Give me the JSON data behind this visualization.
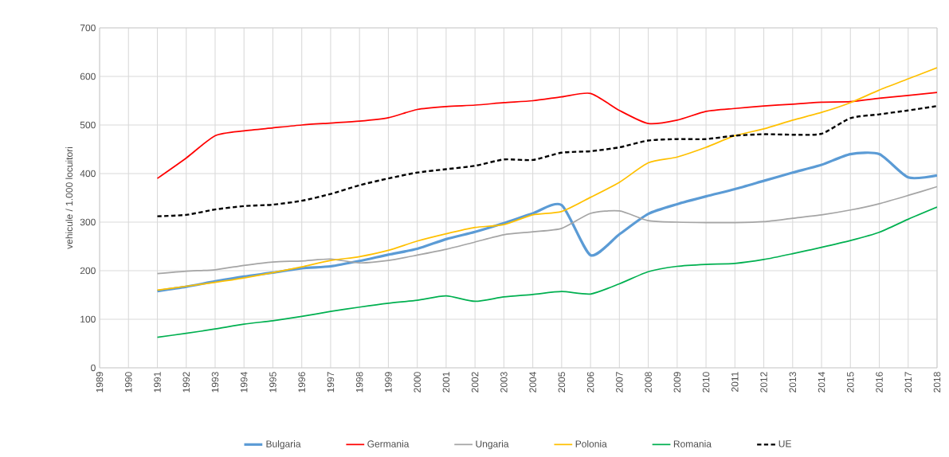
{
  "chart_data": {
    "type": "line",
    "ylabel": "vehicule / 1.000 locuitori",
    "x": [
      1991,
      1992,
      1993,
      1994,
      1995,
      1996,
      1997,
      1998,
      1999,
      2000,
      2001,
      2002,
      2003,
      2004,
      2005,
      2006,
      2007,
      2008,
      2009,
      2010,
      2011,
      2012,
      2013,
      2014,
      2015,
      2016,
      2017,
      2018
    ],
    "xlim": [
      1989,
      2018
    ],
    "xticks": [
      1989,
      1990,
      1991,
      1992,
      1993,
      1994,
      1995,
      1996,
      1997,
      1998,
      1999,
      2000,
      2001,
      2002,
      2003,
      2004,
      2005,
      2006,
      2007,
      2008,
      2009,
      2010,
      2011,
      2012,
      2013,
      2014,
      2015,
      2016,
      2017,
      2018
    ],
    "ylim": [
      0,
      700
    ],
    "yticks": [
      0,
      100,
      200,
      300,
      400,
      500,
      600,
      700
    ],
    "grid": true,
    "legend": "bottom",
    "series": [
      {
        "name": "Bulgaria",
        "color": "#5b9bd5",
        "values": [
          158,
          167,
          178,
          188,
          196,
          205,
          209,
          220,
          233,
          245,
          265,
          280,
          298,
          318,
          335,
          232,
          275,
          317,
          337,
          353,
          368,
          385,
          402,
          418,
          440,
          440,
          392,
          396
        ]
      },
      {
        "name": "Germania",
        "color": "#ff0000",
        "values": [
          390,
          432,
          478,
          488,
          494,
          500,
          504,
          508,
          515,
          532,
          538,
          541,
          546,
          550,
          558,
          565,
          530,
          503,
          510,
          528,
          534,
          539,
          543,
          547,
          548,
          555,
          561,
          567
        ]
      },
      {
        "name": "Ungaria",
        "color": "#a5a5a5",
        "values": [
          194,
          199,
          202,
          211,
          218,
          220,
          224,
          216,
          221,
          232,
          244,
          259,
          274,
          280,
          287,
          318,
          323,
          303,
          300,
          299,
          299,
          301,
          308,
          315,
          325,
          338,
          355,
          373
        ]
      },
      {
        "name": "Polonia",
        "color": "#ffc000",
        "values": [
          160,
          168,
          176,
          185,
          196,
          208,
          221,
          229,
          242,
          261,
          276,
          289,
          295,
          315,
          322,
          351,
          382,
          422,
          434,
          454,
          478,
          492,
          510,
          526,
          546,
          572,
          595,
          618
        ]
      },
      {
        "name": "Romania",
        "color": "#00b050",
        "values": [
          63,
          71,
          80,
          90,
          97,
          106,
          116,
          125,
          133,
          139,
          148,
          137,
          146,
          151,
          157,
          152,
          173,
          198,
          209,
          213,
          215,
          223,
          235,
          248,
          262,
          279,
          306,
          331
        ]
      },
      {
        "name": "UE",
        "color": "#000000",
        "line_style": "dashed",
        "values": [
          312,
          315,
          326,
          333,
          336,
          344,
          358,
          376,
          390,
          402,
          409,
          416,
          429,
          428,
          443,
          446,
          454,
          468,
          471,
          471,
          478,
          481,
          480,
          482,
          514,
          522,
          530,
          539
        ]
      }
    ]
  }
}
